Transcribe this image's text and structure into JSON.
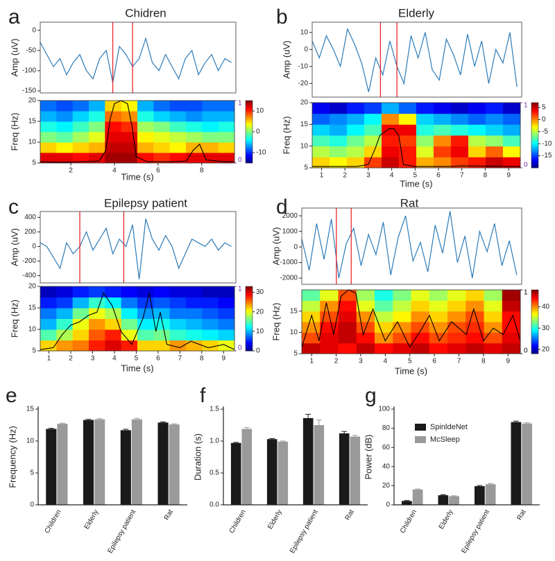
{
  "chart_data": [
    {
      "type": "line",
      "panel": "a",
      "title": "Chidren",
      "ylabel": "Amp (uV)",
      "color": "#2a7ab8",
      "x": [
        0.6,
        0.9,
        1.2,
        1.5,
        1.8,
        2.1,
        2.4,
        2.7,
        3.0,
        3.3,
        3.6,
        3.9,
        4.2,
        4.5,
        4.8,
        5.1,
        5.4,
        5.7,
        6.0,
        6.3,
        6.6,
        6.9,
        7.2,
        7.5,
        7.8,
        8.1,
        8.4,
        8.7,
        9.0,
        9.3
      ],
      "values": [
        -30,
        -60,
        -90,
        -70,
        -110,
        -80,
        -60,
        -100,
        -120,
        -70,
        -50,
        -130,
        -40,
        -60,
        -90,
        -70,
        -20,
        -80,
        -100,
        -60,
        -90,
        -120,
        -70,
        -50,
        -110,
        -80,
        -60,
        -100,
        -70,
        -80
      ],
      "xlim": [
        0.6,
        9.5
      ],
      "ylim": [
        -155,
        20
      ],
      "yticks": [
        0,
        -50,
        -100,
        -150
      ],
      "markers": [
        3.9,
        4.8
      ],
      "marker_color": "#e8262a"
    },
    {
      "type": "heatmap",
      "xlabel": "Time (s)",
      "ylabel": "Freq (Hz)",
      "colormap": "jet",
      "xlim": [
        0.6,
        9.5
      ],
      "ylim": [
        5,
        20
      ],
      "xticks": [
        2,
        4,
        6,
        8
      ],
      "yticks": [
        5,
        10,
        15,
        20
      ],
      "z": [
        [
          12,
          12,
          11,
          12,
          14,
          14,
          11,
          10,
          11,
          12,
          12,
          12
        ],
        [
          5,
          4,
          5,
          6,
          13,
          13,
          6,
          5,
          4,
          6,
          6,
          5
        ],
        [
          0,
          -1,
          1,
          3,
          12,
          12,
          4,
          3,
          2,
          1,
          0,
          0
        ],
        [
          -3,
          -4,
          -2,
          0,
          11,
          10,
          1,
          0,
          -2,
          -3,
          -4,
          -3
        ],
        [
          -6,
          -7,
          -5,
          -3,
          8,
          7,
          -3,
          -5,
          -6,
          -7,
          -6,
          -6
        ],
        [
          -8,
          -9,
          -8,
          -6,
          5,
          4,
          -6,
          -8,
          -9,
          -9,
          -8,
          -8
        ]
      ],
      "zlim": [
        -15,
        15
      ],
      "zticks": [
        10,
        0,
        -10
      ],
      "line": {
        "x": [
          0.6,
          1.5,
          2.5,
          3.3,
          3.6,
          3.8,
          4.0,
          4.3,
          4.6,
          4.8,
          5.0,
          5.5,
          6.5,
          7.3,
          7.6,
          7.9,
          8.2,
          9.0,
          9.5
        ],
        "values": [
          0.02,
          0.01,
          0.02,
          0.03,
          0.2,
          0.7,
          0.95,
          1.0,
          0.95,
          0.6,
          0.1,
          0.02,
          0.02,
          0.03,
          0.2,
          0.3,
          0.05,
          0.02,
          0.02
        ],
        "color": "#000000",
        "axis": "y2"
      },
      "y2lim": [
        0,
        1
      ],
      "y2ticks": [
        1,
        0
      ],
      "y2tick_color": "#7030a0"
    },
    {
      "type": "line",
      "panel": "b",
      "title": "Elderly",
      "ylabel": "Amp (uV)",
      "color": "#2a7ab8",
      "x": [
        0.6,
        0.9,
        1.2,
        1.5,
        1.8,
        2.1,
        2.4,
        2.7,
        3.0,
        3.3,
        3.6,
        3.9,
        4.2,
        4.5,
        4.8,
        5.1,
        5.4,
        5.7,
        6.0,
        6.3,
        6.6,
        6.9,
        7.2,
        7.5,
        7.8,
        8.1,
        8.4,
        8.7,
        9.0,
        9.3
      ],
      "values": [
        5,
        -5,
        8,
        0,
        -10,
        12,
        3,
        -8,
        -25,
        -5,
        -15,
        5,
        -10,
        -20,
        8,
        -5,
        10,
        -12,
        -18,
        6,
        -3,
        -15,
        9,
        -10,
        5,
        -20,
        0,
        -8,
        10,
        -22
      ],
      "xlim": [
        0.6,
        9.5
      ],
      "ylim": [
        -28,
        16
      ],
      "yticks": [
        10,
        0,
        -10,
        -20
      ],
      "markers": [
        3.5,
        4.2
      ],
      "marker_color": "#e8262a"
    },
    {
      "type": "heatmap",
      "xlabel": "Time (s)",
      "ylabel": "Freq (Hz)",
      "colormap": "jet",
      "xlim": [
        0.6,
        9.5
      ],
      "ylim": [
        5,
        20
      ],
      "xticks": [
        1,
        2,
        3,
        4,
        5,
        6,
        7,
        8,
        9
      ],
      "yticks": [
        5,
        10,
        15,
        20
      ],
      "z": [
        [
          -2,
          -3,
          -2,
          2,
          5,
          3,
          -1,
          0,
          2,
          3,
          5,
          4
        ],
        [
          -5,
          -6,
          -5,
          -2,
          4,
          3,
          -4,
          2,
          4,
          -2,
          1,
          -3
        ],
        [
          -8,
          -9,
          -7,
          -5,
          3,
          2,
          -6,
          0,
          3,
          -5,
          -6,
          -8
        ],
        [
          -11,
          -12,
          -10,
          -8,
          4,
          4,
          -9,
          -8,
          -9,
          -10,
          -11,
          -12
        ],
        [
          -14,
          -13,
          -12,
          -10,
          0,
          -3,
          -11,
          -12,
          -13,
          -14,
          -13,
          -14
        ],
        [
          -17,
          -18,
          -16,
          -15,
          -12,
          -14,
          -16,
          -17,
          -18,
          -17,
          -16,
          -18
        ]
      ],
      "zlim": [
        -20,
        7
      ],
      "zticks": [
        5,
        0,
        -5,
        -10,
        -15
      ],
      "line": {
        "x": [
          0.6,
          2.5,
          3.0,
          3.3,
          3.5,
          3.7,
          3.9,
          4.1,
          4.3,
          4.5,
          5,
          6.5,
          7.0,
          9.5
        ],
        "values": [
          0.02,
          0.02,
          0.05,
          0.3,
          0.5,
          0.55,
          0.6,
          0.6,
          0.5,
          0.05,
          0.02,
          0.02,
          0.03,
          0.02
        ],
        "color": "#000000",
        "axis": "y2"
      },
      "y2lim": [
        0,
        1
      ],
      "y2ticks": [
        1,
        0
      ],
      "y2tick_color": "#7030a0"
    },
    {
      "type": "line",
      "panel": "c",
      "title": "Epilepsy patient",
      "ylabel": "Amp (uV)",
      "color": "#2a7ab8",
      "x": [
        0.6,
        0.9,
        1.2,
        1.5,
        1.8,
        2.1,
        2.4,
        2.7,
        3.0,
        3.3,
        3.6,
        3.9,
        4.2,
        4.5,
        4.8,
        5.1,
        5.4,
        5.7,
        6.0,
        6.3,
        6.6,
        6.9,
        7.2,
        7.5,
        7.8,
        8.1,
        8.4,
        8.7,
        9.0,
        9.3
      ],
      "values": [
        50,
        0,
        -150,
        -300,
        50,
        -100,
        0,
        200,
        -50,
        100,
        250,
        -100,
        100,
        0,
        300,
        -450,
        380,
        100,
        -50,
        150,
        0,
        -300,
        -100,
        100,
        50,
        0,
        100,
        -50,
        50,
        0
      ],
      "xlim": [
        0.6,
        9.5
      ],
      "ylim": [
        -500,
        480
      ],
      "yticks": [
        400,
        200,
        0,
        -200,
        -400
      ],
      "markers": [
        2.4,
        4.4
      ],
      "marker_color": "#e8262a"
    },
    {
      "type": "heatmap",
      "xlabel": "Time (s)",
      "ylabel": "Freq (Hz)",
      "colormap": "jet",
      "xlim": [
        0.6,
        9.5
      ],
      "ylim": [
        5,
        20
      ],
      "xticks": [
        1,
        2,
        3,
        4,
        5,
        6,
        7,
        8,
        9
      ],
      "yticks": [
        5,
        10,
        15,
        20
      ],
      "z": [
        [
          22,
          24,
          25,
          28,
          30,
          28,
          22,
          22,
          24,
          23,
          22,
          20
        ],
        [
          15,
          18,
          22,
          26,
          28,
          20,
          15,
          16,
          14,
          13,
          12,
          11
        ],
        [
          10,
          14,
          20,
          24,
          22,
          16,
          12,
          13,
          11,
          10,
          9,
          8
        ],
        [
          8,
          10,
          16,
          20,
          18,
          12,
          9,
          10,
          8,
          8,
          7,
          6
        ],
        [
          5,
          6,
          10,
          14,
          12,
          8,
          6,
          7,
          6,
          5,
          5,
          4
        ],
        [
          2,
          3,
          5,
          6,
          5,
          4,
          3,
          4,
          3,
          3,
          2,
          2
        ]
      ],
      "zlim": [
        0,
        33
      ],
      "zticks": [
        30,
        20,
        10,
        0
      ],
      "line": {
        "x": [
          0.6,
          1.2,
          1.6,
          2.0,
          2.4,
          2.8,
          3.2,
          3.5,
          3.7,
          3.9,
          4.3,
          4.8,
          5.3,
          5.6,
          5.9,
          6.1,
          6.4,
          7.0,
          7.5,
          8.3,
          9.0,
          9.5
        ],
        "values": [
          0.02,
          0.05,
          0.25,
          0.4,
          0.45,
          0.55,
          0.6,
          0.9,
          0.8,
          0.7,
          0.3,
          0.1,
          0.5,
          0.9,
          0.3,
          0.6,
          0.1,
          0.05,
          0.15,
          0.05,
          0.1,
          0.02
        ],
        "color": "#000000",
        "axis": "y2"
      },
      "y2lim": [
        0,
        1
      ],
      "y2ticks": [
        1,
        0
      ],
      "y2tick_color": "#7030a0"
    },
    {
      "type": "line",
      "panel": "d",
      "title": "Rat",
      "ylabel": "Amp (uV)",
      "color": "#2a7ab8",
      "x": [
        0.6,
        0.9,
        1.2,
        1.5,
        1.8,
        2.1,
        2.4,
        2.7,
        3.0,
        3.3,
        3.6,
        3.9,
        4.2,
        4.5,
        4.8,
        5.1,
        5.4,
        5.7,
        6.0,
        6.3,
        6.6,
        6.9,
        7.2,
        7.5,
        7.8,
        8.1,
        8.4,
        8.7,
        9.0,
        9.3
      ],
      "values": [
        500,
        -1500,
        1500,
        -800,
        1800,
        -2000,
        200,
        1200,
        -1200,
        800,
        -500,
        1600,
        -1800,
        600,
        2000,
        -900,
        300,
        -1600,
        1400,
        -400,
        2300,
        -1000,
        700,
        -2000,
        1000,
        -300,
        1500,
        -1200,
        400,
        -1800
      ],
      "xlim": [
        0.6,
        9.5
      ],
      "ylim": [
        -2400,
        2500
      ],
      "yticks": [
        2000,
        1000,
        0,
        -1000,
        -2000
      ],
      "markers": [
        2.0,
        2.6
      ],
      "marker_color": "#e8262a"
    },
    {
      "type": "heatmap",
      "xlabel": "Time (s)",
      "ylabel": "Freq (Hz)",
      "colormap": "jet",
      "xlim": [
        0.6,
        9.5
      ],
      "ylim": [
        5,
        20
      ],
      "xticks": [
        1,
        2,
        3,
        4,
        5,
        6,
        7,
        8,
        9
      ],
      "yticks": [
        5,
        10,
        15
      ],
      "z": [
        [
          46,
          45,
          44,
          46,
          44,
          45,
          46,
          44,
          45,
          46,
          45,
          46
        ],
        [
          42,
          45,
          46,
          44,
          40,
          42,
          44,
          42,
          43,
          44,
          42,
          45
        ],
        [
          40,
          44,
          46,
          42,
          38,
          40,
          42,
          40,
          42,
          43,
          40,
          44
        ],
        [
          38,
          42,
          45,
          40,
          35,
          37,
          40,
          38,
          40,
          42,
          38,
          44
        ],
        [
          35,
          40,
          44,
          36,
          32,
          35,
          38,
          36,
          38,
          40,
          36,
          46
        ],
        [
          32,
          36,
          42,
          34,
          30,
          33,
          36,
          34,
          36,
          38,
          34,
          47
        ]
      ],
      "zlim": [
        18,
        48
      ],
      "zticks": [
        40,
        30,
        20
      ],
      "line": {
        "x": [
          0.6,
          1.0,
          1.3,
          1.6,
          1.9,
          2.2,
          2.5,
          2.8,
          3.1,
          3.5,
          4.0,
          4.5,
          5.0,
          5.5,
          5.8,
          6.2,
          6.7,
          7.3,
          7.6,
          8.0,
          8.4,
          8.8,
          9.2,
          9.5
        ],
        "values": [
          0.1,
          0.6,
          0.2,
          0.8,
          0.3,
          0.9,
          1.0,
          0.95,
          0.3,
          0.7,
          0.2,
          0.5,
          0.1,
          0.4,
          0.6,
          0.2,
          0.5,
          0.3,
          0.7,
          0.2,
          0.4,
          0.3,
          0.6,
          0.2
        ],
        "color": "#000000",
        "axis": "y2"
      },
      "y2lim": [
        0,
        1
      ],
      "y2ticks": [
        1,
        0
      ],
      "y2tick_color": "#000000"
    },
    {
      "type": "bar",
      "panel": "e",
      "ylabel": "Frequency (Hz)",
      "categories": [
        "Children",
        "Elderly",
        "Epilepsy patient",
        "Rat"
      ],
      "series": [
        {
          "color": "#1a1a1a",
          "values": [
            11.9,
            13.3,
            11.7,
            12.9
          ],
          "errors": [
            0.1,
            0.1,
            0.15,
            0.1
          ]
        },
        {
          "color": "#9a9a9a",
          "values": [
            12.7,
            13.4,
            13.4,
            12.6
          ],
          "errors": [
            0.1,
            0.1,
            0.15,
            0.1
          ]
        }
      ],
      "ylim": [
        0,
        15
      ],
      "yticks": [
        0,
        5,
        10,
        15
      ]
    },
    {
      "type": "bar",
      "panel": "f",
      "ylabel": "Duration (s)",
      "categories": [
        "Children",
        "Elderly",
        "Epilepsy patient",
        "Rat"
      ],
      "series": [
        {
          "color": "#1a1a1a",
          "values": [
            0.97,
            1.03,
            1.36,
            1.12
          ],
          "errors": [
            0.01,
            0.01,
            0.06,
            0.03
          ]
        },
        {
          "color": "#9a9a9a",
          "values": [
            1.19,
            0.99,
            1.25,
            1.07
          ],
          "errors": [
            0.02,
            0.01,
            0.08,
            0.02
          ]
        }
      ],
      "ylim": [
        0,
        1.5
      ],
      "yticks": [
        {
          "value": 0,
          "label": "0.0"
        },
        {
          "value": 0.5,
          "label": "0.5"
        },
        {
          "value": 1,
          "label": "1.0"
        },
        {
          "value": 1.5,
          "label": "1.5"
        }
      ]
    },
    {
      "type": "bar",
      "panel": "g",
      "ylabel": "Power (dB)",
      "categories": [
        "Children",
        "Elderly",
        "Epilepsy patient",
        "Rat"
      ],
      "series": [
        {
          "name": "SpinldeNet",
          "color": "#1a1a1a",
          "values": [
            4,
            10,
            19.5,
            86.5
          ],
          "errors": [
            0.5,
            0.5,
            0.7,
            1
          ]
        },
        {
          "name": "McSleep",
          "color": "#9a9a9a",
          "values": [
            16,
            9,
            21.5,
            85
          ],
          "errors": [
            0.6,
            0.5,
            0.7,
            0.8
          ]
        }
      ],
      "ylim": [
        0,
        100
      ],
      "yticks": [
        0,
        20,
        40,
        60,
        80,
        100
      ],
      "legend": "upper left"
    }
  ]
}
